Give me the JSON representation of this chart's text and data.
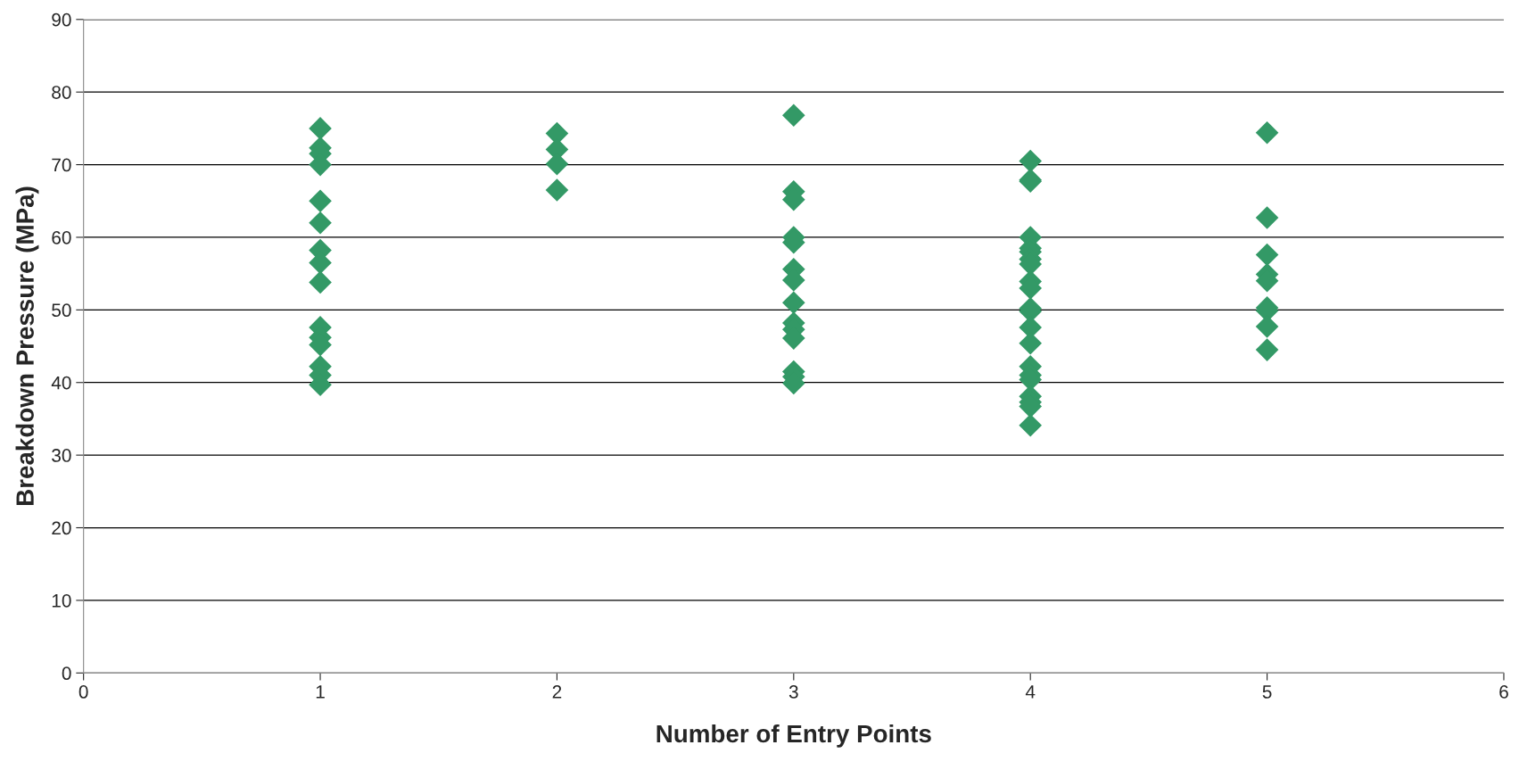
{
  "chart_data": {
    "type": "scatter",
    "xlabel": "Number of Entry Points",
    "ylabel": "Breakdown Pressure (MPa)",
    "x": [
      1,
      1,
      1,
      1,
      1,
      1,
      1,
      1,
      1,
      1,
      1,
      1,
      1,
      1,
      1,
      2,
      2,
      2,
      2,
      3,
      3,
      3,
      3,
      3,
      3,
      3,
      3,
      3,
      3,
      3,
      3,
      3,
      3,
      4,
      4,
      4,
      4,
      4,
      4,
      4,
      4,
      4,
      4,
      4,
      4,
      4,
      4,
      4,
      4,
      4,
      4,
      4,
      4,
      4,
      5,
      5,
      5,
      5,
      5,
      5,
      5,
      5,
      5
    ],
    "series": [
      {
        "color": "#339966",
        "values": [
          75,
          72.3,
          71.5,
          70,
          65,
          62,
          58.2,
          56.5,
          53.8,
          47.6,
          46.2,
          45.2,
          42.2,
          41,
          39.7,
          74.3,
          72.1,
          70.1,
          66.5,
          76.8,
          66.3,
          65.2,
          60,
          59.3,
          55.6,
          54.1,
          51,
          48.2,
          47.3,
          46.1,
          41.5,
          40.8,
          39.9,
          70.5,
          67.9,
          67.7,
          60,
          58.5,
          58,
          57,
          56.3,
          53.9,
          53,
          50.2,
          49.8,
          47.6,
          45.4,
          42.2,
          41,
          40.4,
          38.1,
          37.3,
          36.7,
          34.1,
          74.4,
          62.7,
          57.6,
          54.9,
          54,
          50.3,
          49.9,
          47.7,
          44.5
        ]
      }
    ],
    "xlim": [
      0,
      6
    ],
    "xticks": [
      0,
      1,
      2,
      3,
      4,
      5,
      6
    ],
    "ylim": [
      0,
      90
    ],
    "yticks": [
      0,
      10,
      20,
      30,
      40,
      50,
      60,
      70,
      80,
      90
    ],
    "grid": "y",
    "marker": "diamond"
  }
}
